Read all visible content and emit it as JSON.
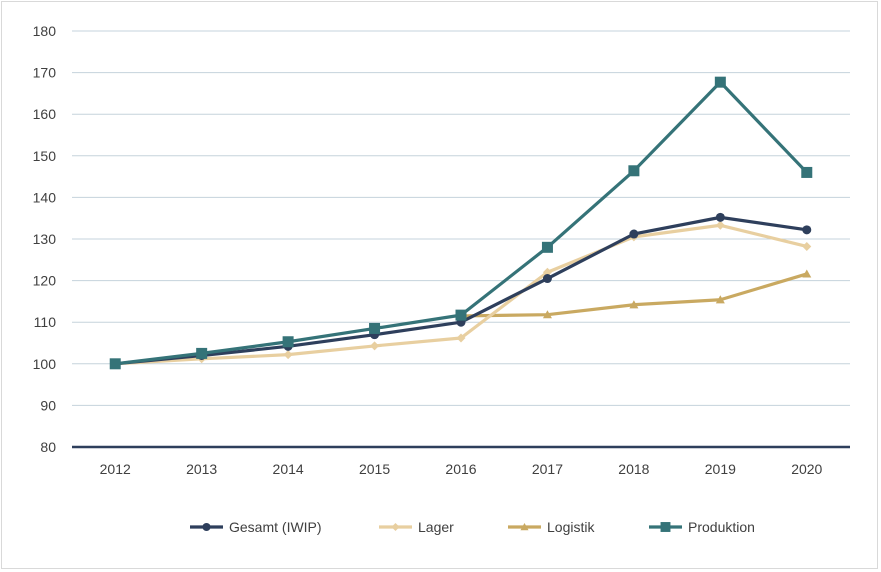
{
  "chart_data": {
    "type": "line",
    "title": "",
    "xlabel": "",
    "ylabel": "",
    "categories": [
      "2012",
      "2013",
      "2014",
      "2015",
      "2016",
      "2017",
      "2018",
      "2019",
      "2020"
    ],
    "ylim": [
      80,
      180
    ],
    "yticks": [
      80,
      90,
      100,
      110,
      120,
      130,
      140,
      150,
      160,
      170,
      180
    ],
    "grid": true,
    "legend_position": "bottom",
    "series": [
      {
        "name": "Gesamt (IWIP)",
        "color": "#2e3f5c",
        "marker": "circle",
        "values": [
          100,
          102.0,
          104.2,
          107.0,
          110.0,
          120.5,
          131.2,
          135.2,
          132.2
        ]
      },
      {
        "name": "Lager",
        "color": "#e8cfa0",
        "marker": "diamond",
        "values": [
          100,
          101.2,
          102.2,
          104.3,
          106.2,
          122.0,
          130.5,
          133.3,
          128.2
        ]
      },
      {
        "name": "Logistik",
        "color": "#c9a961",
        "marker": "triangle",
        "values": [
          null,
          null,
          null,
          null,
          111.5,
          111.8,
          114.2,
          115.4,
          121.6
        ]
      },
      {
        "name": "Produktion",
        "color": "#357378",
        "marker": "square",
        "values": [
          100,
          102.5,
          105.3,
          108.5,
          111.7,
          128.0,
          146.4,
          167.7,
          146.0
        ]
      }
    ]
  }
}
